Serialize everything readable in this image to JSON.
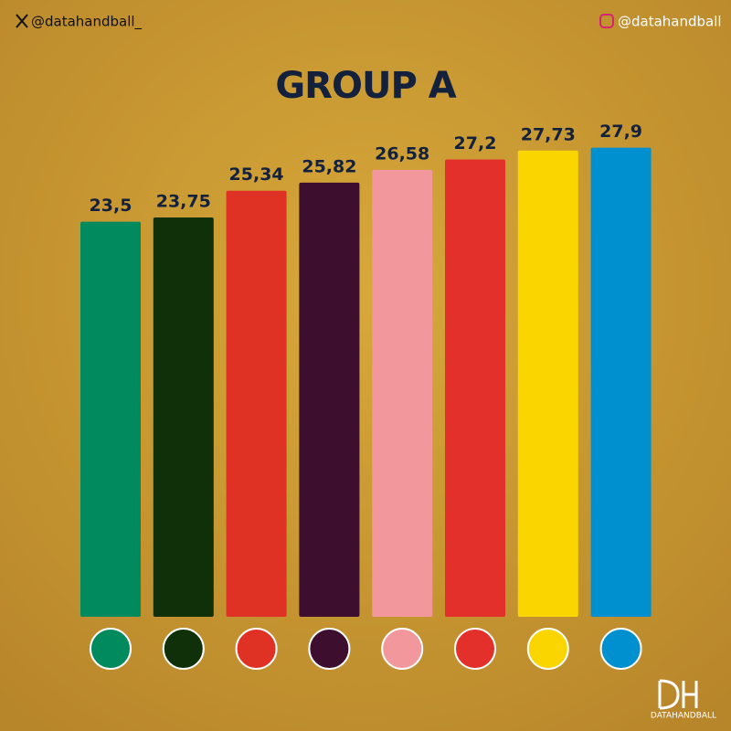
{
  "header": {
    "twitter": "@datahandball_",
    "instagram": "@datahandball"
  },
  "brand": "DATAHANDBALL",
  "chart_data": {
    "type": "bar",
    "title": "GROUP A",
    "categories": [
      null,
      null,
      null,
      null,
      null,
      null,
      null,
      null
    ],
    "values": [
      23.5,
      23.75,
      25.34,
      25.82,
      26.58,
      27.2,
      27.73,
      27.9
    ],
    "value_labels": [
      "23,5",
      "23,75",
      "25,34",
      "25,82",
      "26,58",
      "27,2",
      "27,73",
      "27,9"
    ],
    "colors": [
      "#008a5e",
      "#0f3008",
      "#e03224",
      "#3d0e2e",
      "#f2979c",
      "#e3302a",
      "#fbd500",
      "#0090d0"
    ],
    "grid": false
  }
}
